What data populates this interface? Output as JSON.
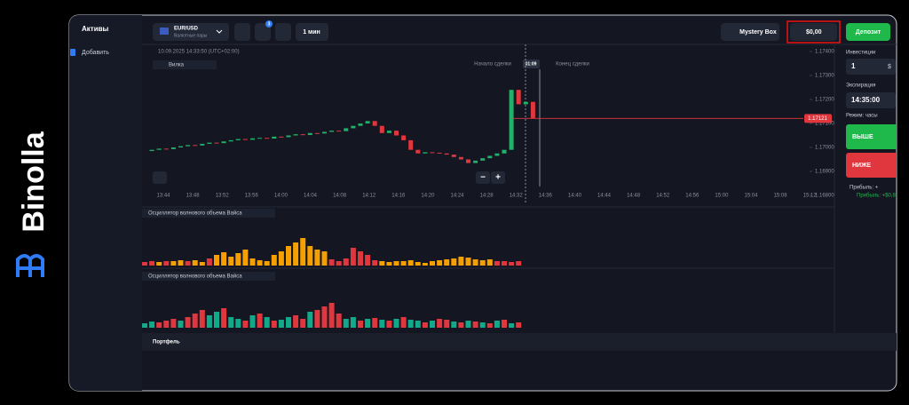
{
  "brand": "Binolla",
  "sidebar": {
    "title": "Активы",
    "add": "Добавить"
  },
  "topbar": {
    "asset": "EUR/USD",
    "asset_type": "Валютные пары",
    "badge": "3",
    "timeframe": "1 мин",
    "mystery": "Mystery Box",
    "balance": "$0,00",
    "deposit": "Депозит"
  },
  "chart": {
    "datetime": "10.09.2025 14:33:50 (UTC+02:00)",
    "indicator": "Вилка",
    "trade_start": "Начало сделки",
    "timer": "01:09",
    "trade_end": "Конец сделки",
    "current_price": 1.17121,
    "ylim": [
      1.168,
      1.174
    ],
    "yticks": [
      {
        "value": 1.174,
        "label": "1.17400"
      },
      {
        "value": 1.173,
        "label": "1.17300"
      },
      {
        "value": 1.172,
        "label": "1.17200"
      },
      {
        "value": 1.171,
        "label": "1.17100"
      },
      {
        "value": 1.17,
        "label": "1.17000"
      },
      {
        "value": 1.169,
        "label": "1.16900"
      },
      {
        "value": 1.168,
        "label": "1.16800"
      }
    ],
    "time_labels": [
      "13:44",
      "13:48",
      "13:52",
      "13:56",
      "14:00",
      "14:04",
      "14:08",
      "14:12",
      "14:16",
      "14:20",
      "14:24",
      "14:28",
      "14:32",
      "14:36",
      "14:40",
      "14:44",
      "14:48",
      "14:52",
      "14:56",
      "15:00",
      "15:04",
      "15:08",
      "15:12"
    ],
    "up_color": "#1fb36a",
    "down_color": "#e0373f",
    "closes": [
      1.16985,
      1.1699,
      1.16995,
      1.16993,
      1.17,
      1.17005,
      1.1701,
      1.17008,
      1.17015,
      1.1702,
      1.17018,
      1.17025,
      1.1703,
      1.17035,
      1.17032,
      1.17038,
      1.1704,
      1.17037,
      1.17045,
      1.17043,
      1.1705,
      1.17055,
      1.17052,
      1.1706,
      1.17058,
      1.17065,
      1.1707,
      1.17068,
      1.1708,
      1.1709,
      1.171,
      1.1711,
      1.1709,
      1.1706,
      1.1707,
      1.1705,
      1.1703,
      1.1699,
      1.16975,
      1.1698,
      1.16978,
      1.16975,
      1.1697,
      1.1696,
      1.1695,
      1.16935,
      1.16945,
      1.16955,
      1.16965,
      1.16975,
      1.1699,
      1.1724,
      1.1718,
      1.1719,
      1.17121
    ]
  },
  "oscillators": [
    {
      "name": "Осциллятор волнового объема Вайса",
      "ylim": [
        0,
        35
      ],
      "colors": {
        "up": "#f59f00",
        "down": "#e0373f"
      },
      "values": [
        4,
        5,
        4,
        5,
        5,
        6,
        5,
        6,
        4,
        8,
        12,
        15,
        10,
        14,
        18,
        8,
        6,
        5,
        12,
        16,
        22,
        26,
        31,
        22,
        18,
        16,
        7,
        5,
        8,
        20,
        16,
        12,
        6,
        5,
        4,
        5,
        5,
        6,
        4,
        3,
        5,
        6,
        7,
        8,
        10,
        9,
        7,
        6,
        7,
        5,
        5,
        4,
        5
      ],
      "dirs": [
        "down",
        "down",
        "up",
        "down",
        "up",
        "up",
        "down",
        "up",
        "up",
        "down",
        "up",
        "up",
        "up",
        "up",
        "up",
        "up",
        "up",
        "up",
        "up",
        "up",
        "up",
        "up",
        "up",
        "up",
        "up",
        "up",
        "down",
        "down",
        "down",
        "down",
        "down",
        "down",
        "down",
        "up",
        "up",
        "up",
        "up",
        "up",
        "up",
        "up",
        "up",
        "up",
        "up",
        "up",
        "up",
        "up",
        "up",
        "up",
        "up",
        "down",
        "down",
        "down",
        "down"
      ]
    },
    {
      "name": "Осциллятор волнового объема Вайса",
      "ylim": [
        0,
        35
      ],
      "colors": {
        "up": "#14a88a",
        "down": "#e0373f"
      },
      "values": [
        5,
        7,
        6,
        8,
        10,
        8,
        12,
        16,
        20,
        14,
        18,
        22,
        12,
        10,
        8,
        14,
        16,
        12,
        8,
        9,
        12,
        14,
        10,
        18,
        20,
        24,
        28,
        16,
        10,
        12,
        8,
        10,
        11,
        9,
        8,
        10,
        12,
        9,
        8,
        6,
        8,
        10,
        9,
        7,
        6,
        8,
        7,
        6,
        5,
        8,
        9,
        5,
        6
      ],
      "dirs": [
        "up",
        "up",
        "down",
        "down",
        "down",
        "up",
        "down",
        "down",
        "down",
        "up",
        "up",
        "down",
        "up",
        "up",
        "down",
        "up",
        "down",
        "up",
        "down",
        "up",
        "up",
        "down",
        "down",
        "up",
        "down",
        "down",
        "down",
        "down",
        "up",
        "up",
        "down",
        "up",
        "down",
        "up",
        "down",
        "up",
        "down",
        "up",
        "up",
        "down",
        "up",
        "down",
        "down",
        "up",
        "down",
        "up",
        "down",
        "up",
        "down",
        "up",
        "down",
        "up",
        "down"
      ]
    }
  ],
  "portfolio": "Портфель",
  "trade_panel": {
    "investment": "Инвестиции",
    "amount": "1",
    "currency": "$",
    "expiration": "Экспирация",
    "expiry": "14:35:00",
    "mode": "Режим: часы",
    "higher": "ВЫШЕ",
    "lower": "НИЖЕ",
    "profit1": "Прибыль: +",
    "profit2": "Прибыль: +$0,8"
  }
}
